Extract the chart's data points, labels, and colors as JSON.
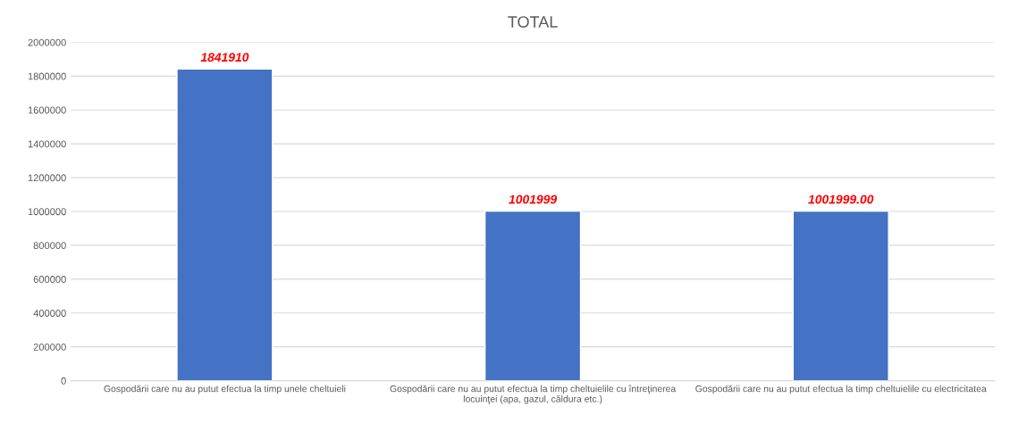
{
  "chart_data": {
    "type": "bar",
    "title": "TOTAL",
    "categories": [
      "Gospodării care nu au putut efectua la timp unele cheltuieli",
      "Gospodării care nu au putut efectua la timp cheltuielile cu întreţinerea\nlocuinţei (apa, gazul, căldura etc.)",
      "Gospodării care nu au putut efectua la timp cheltuielile cu electricitatea"
    ],
    "values": [
      1841910,
      1001999,
      1001999
    ],
    "value_labels": [
      "1841910",
      "1001999",
      "1001999.00"
    ],
    "color": "#4472c4",
    "ylim": [
      0,
      2000000
    ],
    "yticks": [
      0,
      200000,
      400000,
      600000,
      800000,
      1000000,
      1200000,
      1400000,
      1600000,
      1800000,
      2000000
    ],
    "grid": "y"
  }
}
